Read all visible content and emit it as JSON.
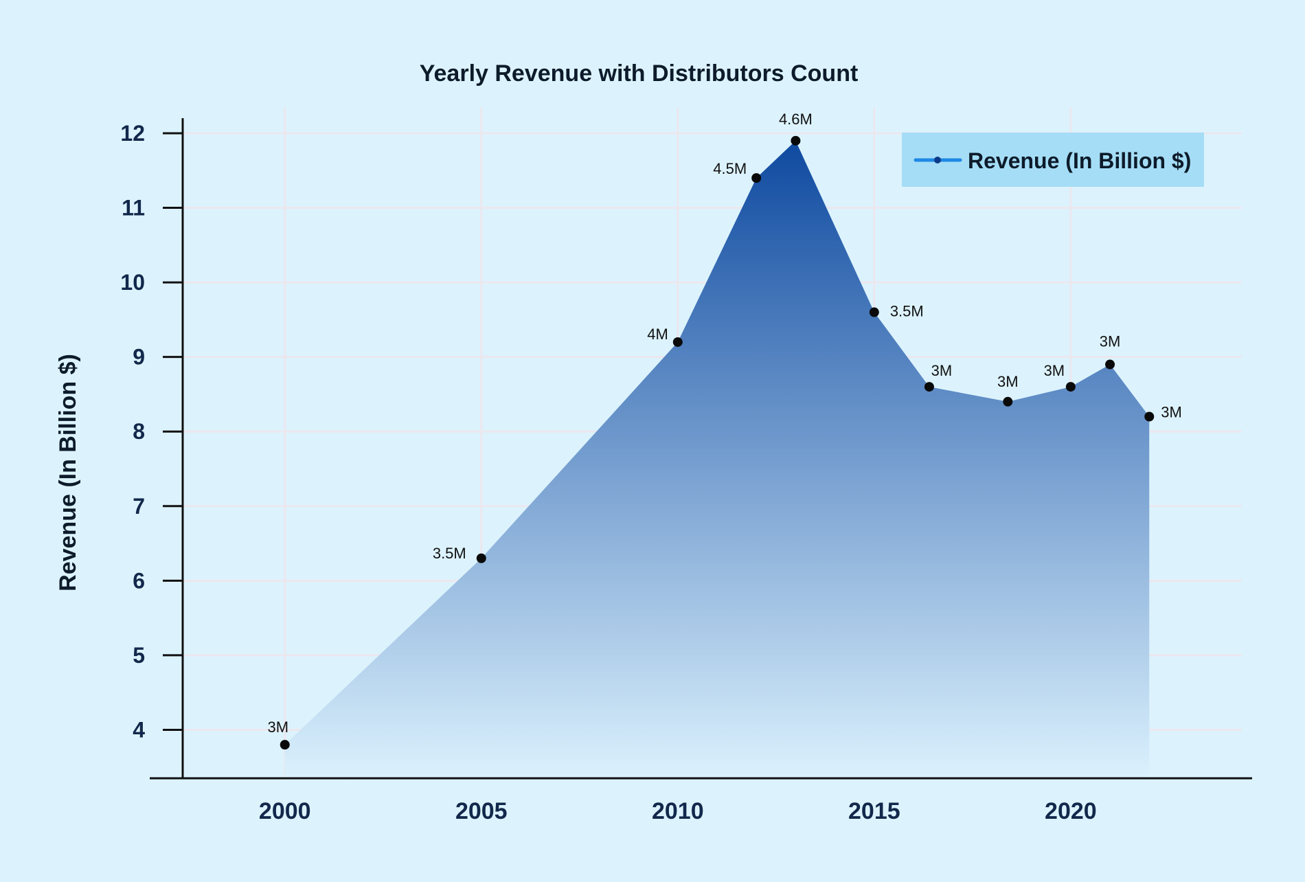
{
  "chart_data": {
    "type": "area",
    "title": "Yearly Revenue with Distributors Count",
    "xlabel": "",
    "ylabel": "Revenue (In Billion $)",
    "xlim": [
      1997.4,
      2024.6
    ],
    "ylim": [
      3.35,
      12.35
    ],
    "x_ticks": [
      2000,
      2005,
      2010,
      2015,
      2020
    ],
    "y_ticks": [
      4,
      5,
      6,
      7,
      8,
      9,
      10,
      11,
      12
    ],
    "grid": true,
    "legend_position": "top-right",
    "series": [
      {
        "name": "Revenue (In Billion $)",
        "x": [
          2000,
          2005,
          2010,
          2012,
          2013,
          2015,
          2016.4,
          2018.4,
          2020,
          2021,
          2022
        ],
        "values": [
          3.8,
          6.3,
          9.2,
          11.4,
          11.9,
          9.6,
          8.6,
          8.4,
          8.6,
          8.9,
          8.2
        ],
        "labels": [
          "3M",
          "3.5M",
          "4M",
          "4.5M",
          "4.6M",
          "3.5M",
          "3M",
          "3M",
          "3M",
          "3M",
          "3M"
        ],
        "color": "#1e88e5",
        "fill_top_color": "#0f4aa0",
        "fill_bottom_color": "#dbf1fd"
      }
    ]
  },
  "colors": {
    "background": "#dcf3fd",
    "grid": "#ece7ee",
    "axis": "#111111",
    "legend_background": "#a5ddf6",
    "point": "#0a0a0a"
  }
}
